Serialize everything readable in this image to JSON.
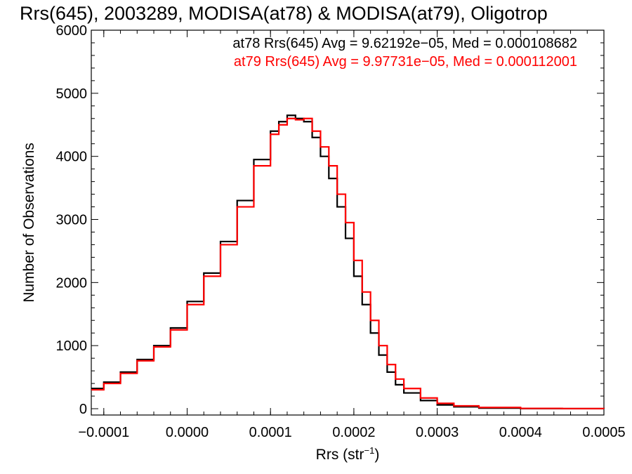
{
  "chart_data": {
    "type": "line",
    "title": "Rrs(645), 2003289, MODISA(at78) & MODISA(at79), Oligotrop",
    "xlabel": "Rrs (str",
    "xlabel_sup": "−1",
    "xlabel_close": ")",
    "ylabel": "Number of Observations",
    "xlim": [
      -0.000115,
      0.0005
    ],
    "ylim": [
      -100,
      6000
    ],
    "xticks": [
      -0.0001,
      0.0,
      0.0001,
      0.0002,
      0.0003,
      0.0004,
      0.0005
    ],
    "xtick_labels": [
      "−0.0001",
      "0.0000",
      "0.0001",
      "0.0002",
      "0.0003",
      "0.0004",
      "0.0005"
    ],
    "yticks": [
      0,
      1000,
      2000,
      3000,
      4000,
      5000,
      6000
    ],
    "ytick_labels": [
      "0",
      "1000",
      "2000",
      "3000",
      "4000",
      "5000",
      "6000"
    ],
    "legend_position": "top-right",
    "series": [
      {
        "color": "#000000",
        "legend": "at78 Rrs(645) Avg = 9.62192e−05, Med = 0.000108682",
        "x": [
          -0.000115,
          -0.0001,
          -8e-05,
          -6e-05,
          -4e-05,
          -2e-05,
          0.0,
          2e-05,
          4e-05,
          6e-05,
          8e-05,
          0.0001,
          0.00011,
          0.00012,
          0.00013,
          0.00014,
          0.00015,
          0.00016,
          0.00017,
          0.00018,
          0.00019,
          0.0002,
          0.00021,
          0.00022,
          0.00023,
          0.00024,
          0.00025,
          0.00026,
          0.00028,
          0.0003,
          0.00032,
          0.00035,
          0.0004,
          0.00045,
          0.0005
        ],
        "y": [
          320,
          420,
          580,
          780,
          1000,
          1280,
          1700,
          2150,
          2650,
          3300,
          3950,
          4400,
          4550,
          4650,
          4600,
          4550,
          4300,
          4000,
          3650,
          3200,
          2700,
          2100,
          1650,
          1200,
          850,
          580,
          380,
          250,
          130,
          60,
          30,
          10,
          3,
          1,
          0
        ]
      },
      {
        "color": "#ff0000",
        "legend": "at79 Rrs(645) Avg = 9.97731e−05, Med = 0.000112001",
        "x": [
          -0.000115,
          -0.0001,
          -8e-05,
          -6e-05,
          -4e-05,
          -2e-05,
          0.0,
          2e-05,
          4e-05,
          6e-05,
          8e-05,
          0.0001,
          0.00011,
          0.00012,
          0.00013,
          0.00014,
          0.00015,
          0.00016,
          0.00017,
          0.00018,
          0.00019,
          0.0002,
          0.00021,
          0.00022,
          0.00023,
          0.00024,
          0.00025,
          0.00026,
          0.00028,
          0.0003,
          0.00032,
          0.00035,
          0.0004,
          0.00045,
          0.0005
        ],
        "y": [
          300,
          400,
          560,
          760,
          980,
          1250,
          1650,
          2100,
          2600,
          3200,
          3850,
          4350,
          4500,
          4600,
          4580,
          4600,
          4400,
          4150,
          3850,
          3400,
          2950,
          2350,
          1850,
          1400,
          1000,
          700,
          470,
          320,
          170,
          85,
          45,
          20,
          5,
          2,
          0
        ]
      }
    ]
  }
}
